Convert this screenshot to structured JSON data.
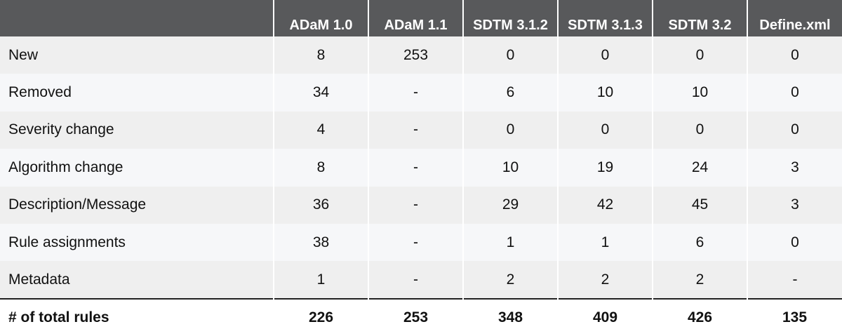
{
  "table": {
    "header": [
      "ADaM 1.0",
      "ADaM 1.1",
      "SDTM 3.1.2",
      "SDTM 3.1.3",
      "SDTM 3.2",
      "Define.xml"
    ],
    "rows": [
      [
        "New",
        "8",
        "253",
        "0",
        "0",
        "0",
        "0"
      ],
      [
        "Removed",
        "34",
        "-",
        "6",
        "10",
        "10",
        "0"
      ],
      [
        "Severity change",
        "4",
        "-",
        "0",
        "0",
        "0",
        "0"
      ],
      [
        "Algorithm change",
        "8",
        "-",
        "10",
        "19",
        "24",
        "3"
      ],
      [
        "Description/Message",
        "36",
        "-",
        "29",
        "42",
        "45",
        "3"
      ],
      [
        "Rule assignments",
        "38",
        "-",
        "1",
        "1",
        "6",
        "0"
      ],
      [
        "Metadata",
        "1",
        "-",
        "2",
        "2",
        "2",
        "-"
      ]
    ],
    "total": [
      "# of total rules",
      "226",
      "253",
      "348",
      "409",
      "426",
      "135"
    ]
  }
}
